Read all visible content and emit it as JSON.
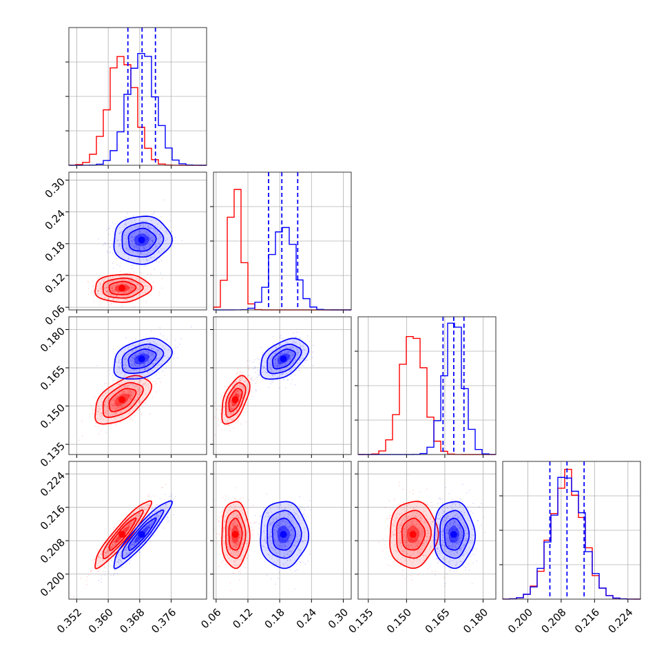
{
  "chart_data": {
    "type": "corner",
    "grid": true,
    "legend": "none",
    "colors": {
      "red": "#ff0000",
      "blue": "#0000ff"
    },
    "parameters": [
      {
        "range": [
          0.35,
          0.385
        ],
        "ticks": [
          "0.352",
          "0.360",
          "0.368",
          "0.376"
        ],
        "tick_values": [
          0.352,
          0.36,
          0.368,
          0.376
        ]
      },
      {
        "range": [
          0.055,
          0.315
        ],
        "ticks": [
          "0.06",
          "0.12",
          "0.18",
          "0.24",
          "0.30"
        ],
        "tick_values": [
          0.06,
          0.12,
          0.18,
          0.24,
          0.3
        ]
      },
      {
        "range": [
          0.131,
          0.185
        ],
        "ticks": [
          "0.135",
          "0.150",
          "0.165",
          "0.180"
        ],
        "tick_values": [
          0.135,
          0.15,
          0.165,
          0.18
        ]
      },
      {
        "range": [
          0.194,
          0.227
        ],
        "ticks": [
          "0.200",
          "0.208",
          "0.216",
          "0.224"
        ],
        "tick_values": [
          0.2,
          0.208,
          0.216,
          0.224
        ]
      }
    ],
    "series": [
      {
        "color": "red",
        "mean": [
          0.3635,
          0.096,
          0.1525,
          0.2095
        ],
        "sd": [
          0.0034,
          0.0125,
          0.0045,
          0.0038
        ],
        "peak_1d": [
          0.83,
          0.92,
          0.93,
          0.91
        ]
      },
      {
        "color": "blue",
        "mean": [
          0.3685,
          0.187,
          0.1685,
          0.2095
        ],
        "sd": [
          0.0035,
          0.0215,
          0.0038,
          0.0038
        ],
        "peak_1d": [
          0.85,
          0.64,
          1.0,
          0.92
        ]
      }
    ],
    "correlations": [
      {
        "i": 1,
        "j": 0,
        "red": 0.05,
        "blue": 0.05
      },
      {
        "i": 2,
        "j": 0,
        "red": 0.55,
        "blue": 0.35
      },
      {
        "i": 2,
        "j": 1,
        "red": 0.55,
        "blue": 0.45
      },
      {
        "i": 3,
        "j": 0,
        "red": 0.93,
        "blue": 0.93
      },
      {
        "i": 3,
        "j": 1,
        "red": 0.0,
        "blue": 0.0
      },
      {
        "i": 3,
        "j": 2,
        "red": 0.05,
        "blue": 0.0
      }
    ],
    "quantile_lines": {
      "color": "blue",
      "style": "dashed",
      "values": [
        [
          0.365,
          0.3686,
          0.372
        ],
        [
          0.159,
          0.184,
          0.214
        ],
        [
          0.1643,
          0.1685,
          0.1725
        ],
        [
          0.2053,
          0.2094,
          0.2135
        ]
      ]
    }
  }
}
